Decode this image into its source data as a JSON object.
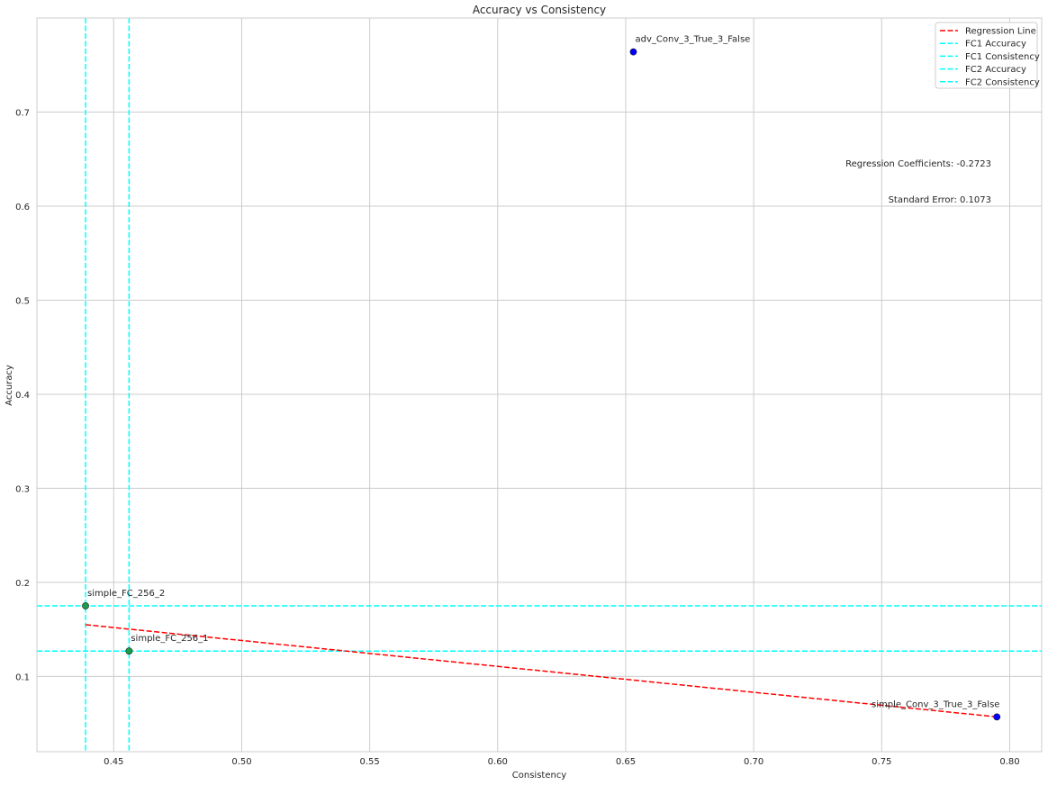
{
  "chart_data": {
    "type": "scatter",
    "title": "Accuracy vs Consistency",
    "xlabel": "Consistency",
    "ylabel": "Accuracy",
    "xlim": [
      0.42,
      0.8125
    ],
    "ylim": [
      0.02,
      0.8
    ],
    "xticks": [
      {
        "value": 0.45,
        "label": "0.45"
      },
      {
        "value": 0.5,
        "label": "0.50"
      },
      {
        "value": 0.55,
        "label": "0.55"
      },
      {
        "value": 0.6,
        "label": "0.60"
      },
      {
        "value": 0.65,
        "label": "0.65"
      },
      {
        "value": 0.7,
        "label": "0.70"
      },
      {
        "value": 0.75,
        "label": "0.75"
      },
      {
        "value": 0.8,
        "label": "0.80"
      }
    ],
    "yticks": [
      {
        "value": 0.1,
        "label": "0.1"
      },
      {
        "value": 0.2,
        "label": "0.2"
      },
      {
        "value": 0.3,
        "label": "0.3"
      },
      {
        "value": 0.4,
        "label": "0.4"
      },
      {
        "value": 0.5,
        "label": "0.5"
      },
      {
        "value": 0.6,
        "label": "0.6"
      },
      {
        "value": 0.7,
        "label": "0.7"
      }
    ],
    "grid": true,
    "legend_position": "top-right",
    "points": [
      {
        "label": "adv_Conv_3_True_3_False",
        "x": 0.653,
        "y": 0.764,
        "color": "#0000ff"
      },
      {
        "label": "simple_FC_256_2",
        "x": 0.439,
        "y": 0.175,
        "color": "#1a9e4a"
      },
      {
        "label": "simple_FC_256_1",
        "x": 0.456,
        "y": 0.127,
        "color": "#1a9e4a"
      },
      {
        "label": "simple_Conv_3_True_3_False",
        "x": 0.795,
        "y": 0.057,
        "color": "#0000ff"
      }
    ],
    "regression_line": {
      "name": "Regression Line",
      "color": "#ff0000",
      "x": [
        0.439,
        0.795
      ],
      "y": [
        0.155,
        0.057
      ]
    },
    "reference_lines": [
      {
        "name": "FC1 Accuracy",
        "orientation": "horizontal",
        "value": 0.127,
        "color": "#00ffff"
      },
      {
        "name": "FC1 Consistency",
        "orientation": "vertical",
        "value": 0.456,
        "color": "#00ffff"
      },
      {
        "name": "FC2 Accuracy",
        "orientation": "horizontal",
        "value": 0.175,
        "color": "#00ffff"
      },
      {
        "name": "FC2 Consistency",
        "orientation": "vertical",
        "value": 0.439,
        "color": "#00ffff"
      }
    ],
    "annotations": [
      {
        "text": "Regression Coefficients: -0.2723"
      },
      {
        "text": "Standard Error: 0.1073"
      }
    ]
  }
}
